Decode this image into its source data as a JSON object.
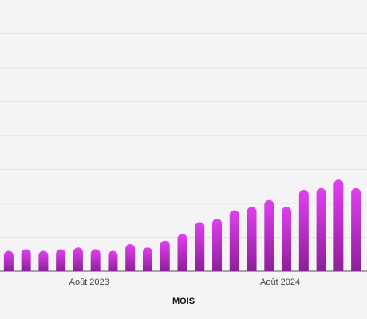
{
  "chart_data": {
    "type": "bar",
    "x_label": "MOIS",
    "categories": [
      null,
      null,
      null,
      null,
      null,
      "Août 2023",
      null,
      null,
      null,
      null,
      null,
      null,
      null,
      null,
      null,
      null,
      "Août 2024",
      null,
      null,
      null,
      null
    ],
    "values": [
      0.6,
      0.65,
      0.6,
      0.65,
      0.7,
      0.65,
      0.6,
      0.8,
      0.7,
      0.9,
      1.1,
      1.45,
      1.55,
      1.8,
      1.9,
      2.1,
      1.9,
      2.4,
      2.45,
      2.7,
      2.45
    ],
    "color_top": "#e23ff0",
    "color_bottom": "#8c1f98",
    "ylim": [
      0,
      8
    ],
    "yticks": [
      1,
      2,
      3,
      4,
      5,
      6,
      7
    ],
    "grid": true
  }
}
